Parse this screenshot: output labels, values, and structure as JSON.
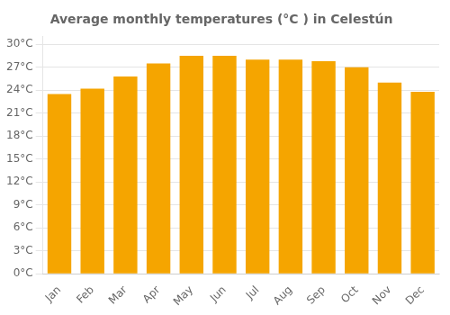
{
  "chart_data": {
    "type": "bar",
    "title": "Average monthly temperatures (°C ) in Celestún",
    "categories": [
      "Jan",
      "Feb",
      "Mar",
      "Apr",
      "May",
      "Jun",
      "Jul",
      "Aug",
      "Sep",
      "Oct",
      "Nov",
      "Dec"
    ],
    "values": [
      23.5,
      24.2,
      25.8,
      27.5,
      28.5,
      28.5,
      28.0,
      28.0,
      27.8,
      27.0,
      25.0,
      23.8
    ],
    "color": "#F5A500",
    "ylim": [
      0,
      31
    ],
    "yticks": [
      {
        "value": 0,
        "label": "0°C"
      },
      {
        "value": 3,
        "label": "3°C"
      },
      {
        "value": 6,
        "label": "6°C"
      },
      {
        "value": 9,
        "label": "9°C"
      },
      {
        "value": 12,
        "label": "12°C"
      },
      {
        "value": 15,
        "label": "15°C"
      },
      {
        "value": 18,
        "label": "18°C"
      },
      {
        "value": 21,
        "label": "21°C"
      },
      {
        "value": 24,
        "label": "24°C"
      },
      {
        "value": 27,
        "label": "27°C"
      },
      {
        "value": 30,
        "label": "30°C"
      }
    ],
    "grid": true
  }
}
